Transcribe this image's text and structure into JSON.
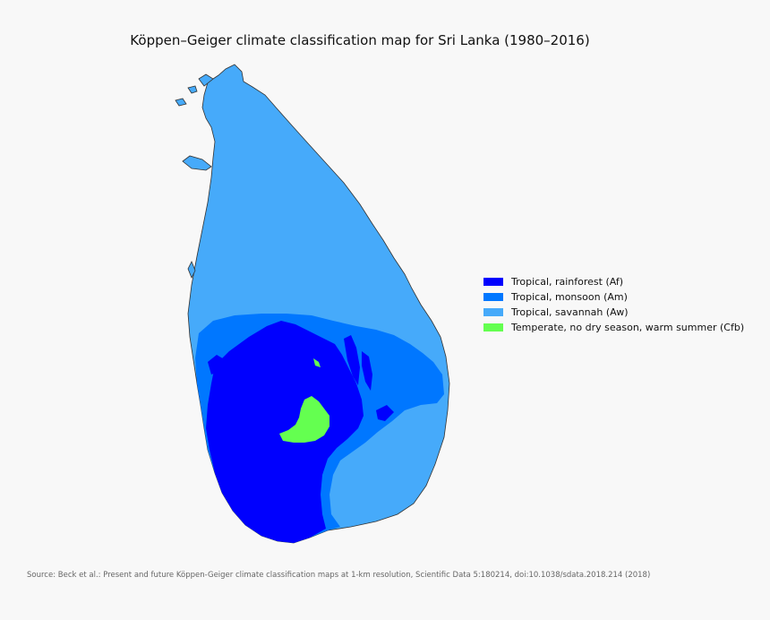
{
  "map": {
    "title": "Köppen–Geiger climate classification map for Sri Lanka (1980–2016)",
    "source": "Source: Beck et al.: Present and future Köppen-Geiger climate classification maps at 1-km resolution, Scientific Data 5:180214, doi:10.1038/sdata.2018.214 (2018)",
    "legend": [
      {
        "code": "Af",
        "label": "Tropical, rainforest (Af)",
        "color": "#0000fe"
      },
      {
        "code": "Am",
        "label": "Tropical, monsoon (Am)",
        "color": "#0077ff"
      },
      {
        "code": "Aw",
        "label": "Tropical, savannah (Aw)",
        "color": "#46aafa"
      },
      {
        "code": "Cfb",
        "label": "Temperate, no dry season, warm summer (Cfb)",
        "color": "#64ff50"
      }
    ],
    "colors": {
      "background": "#f8f8f8",
      "outline": "#333333"
    }
  }
}
